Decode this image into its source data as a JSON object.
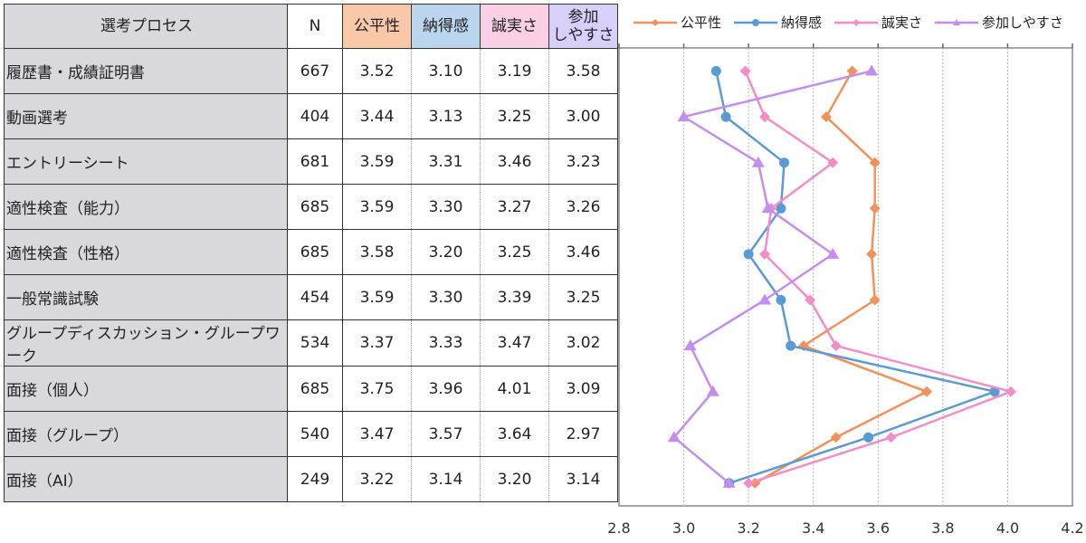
{
  "table": {
    "headers": {
      "process": "選考プロセス",
      "n": "N",
      "fairness": "公平性",
      "convincing": "納得感",
      "honesty": "誠実さ",
      "ease_line1": "参加",
      "ease_line2": "しやすさ"
    },
    "rows": [
      {
        "label": "履歴書・成績証明書",
        "n": "667",
        "fairness": "3.52",
        "convincing": "3.10",
        "honesty": "3.19",
        "ease": "3.58"
      },
      {
        "label": "動画選考",
        "n": "404",
        "fairness": "3.44",
        "convincing": "3.13",
        "honesty": "3.25",
        "ease": "3.00"
      },
      {
        "label": "エントリーシート",
        "n": "681",
        "fairness": "3.59",
        "convincing": "3.31",
        "honesty": "3.46",
        "ease": "3.23"
      },
      {
        "label": "適性検査（能力）",
        "n": "685",
        "fairness": "3.59",
        "convincing": "3.30",
        "honesty": "3.27",
        "ease": "3.26"
      },
      {
        "label": "適性検査（性格）",
        "n": "685",
        "fairness": "3.58",
        "convincing": "3.20",
        "honesty": "3.25",
        "ease": "3.46"
      },
      {
        "label": "一般常識試験",
        "n": "454",
        "fairness": "3.59",
        "convincing": "3.30",
        "honesty": "3.39",
        "ease": "3.25"
      },
      {
        "label": "グループディスカッション・グループワーク",
        "n": "534",
        "fairness": "3.37",
        "convincing": "3.33",
        "honesty": "3.47",
        "ease": "3.02"
      },
      {
        "label": "面接（個人）",
        "n": "685",
        "fairness": "3.75",
        "convincing": "3.96",
        "honesty": "4.01",
        "ease": "3.09"
      },
      {
        "label": "面接（グループ）",
        "n": "540",
        "fairness": "3.47",
        "convincing": "3.57",
        "honesty": "3.64",
        "ease": "2.97"
      },
      {
        "label": "面接（AI）",
        "n": "249",
        "fairness": "3.22",
        "convincing": "3.14",
        "honesty": "3.20",
        "ease": "3.14"
      }
    ]
  },
  "legend": [
    {
      "label": "公平性",
      "color": "#f4905a",
      "marker": "diamond"
    },
    {
      "label": "納得感",
      "color": "#5b9bd5",
      "marker": "circle"
    },
    {
      "label": "誠実さ",
      "color": "#f48cc8",
      "marker": "diamond"
    },
    {
      "label": "参加しやすさ",
      "color": "#c48ef0",
      "marker": "triangle"
    }
  ],
  "axis": {
    "ticks": [
      "2.8",
      "3.0",
      "3.2",
      "3.4",
      "3.6",
      "3.8",
      "4.0",
      "4.2"
    ]
  },
  "chart_data": {
    "type": "line",
    "orientation": "horizontal-profile",
    "categories": [
      "履歴書・成績証明書",
      "動画選考",
      "エントリーシート",
      "適性検査（能力）",
      "適性検査（性格）",
      "一般常識試験",
      "グループディスカッション・グループワーク",
      "面接（個人）",
      "面接（グループ）",
      "面接（AI）"
    ],
    "series": [
      {
        "name": "公平性",
        "color": "#f4905a",
        "marker": "diamond",
        "values": [
          3.52,
          3.44,
          3.59,
          3.59,
          3.58,
          3.59,
          3.37,
          3.75,
          3.47,
          3.22
        ]
      },
      {
        "name": "納得感",
        "color": "#5b9bd5",
        "marker": "circle",
        "values": [
          3.1,
          3.13,
          3.31,
          3.3,
          3.2,
          3.3,
          3.33,
          3.96,
          3.57,
          3.14
        ]
      },
      {
        "name": "誠実さ",
        "color": "#f48cc8",
        "marker": "diamond",
        "values": [
          3.19,
          3.25,
          3.46,
          3.27,
          3.25,
          3.39,
          3.47,
          4.01,
          3.64,
          3.2
        ]
      },
      {
        "name": "参加しやすさ",
        "color": "#c48ef0",
        "marker": "triangle",
        "values": [
          3.58,
          3.0,
          3.23,
          3.26,
          3.46,
          3.25,
          3.02,
          3.09,
          2.97,
          3.14
        ]
      }
    ],
    "n": [
      667,
      404,
      681,
      685,
      685,
      454,
      534,
      685,
      540,
      249
    ],
    "title": "",
    "xlabel": "",
    "ylabel": "",
    "xlim": [
      2.8,
      4.2
    ],
    "xticks": [
      2.8,
      3.0,
      3.2,
      3.4,
      3.6,
      3.8,
      4.0,
      4.2
    ],
    "grid": "vertical dotted",
    "legend_position": "top"
  }
}
